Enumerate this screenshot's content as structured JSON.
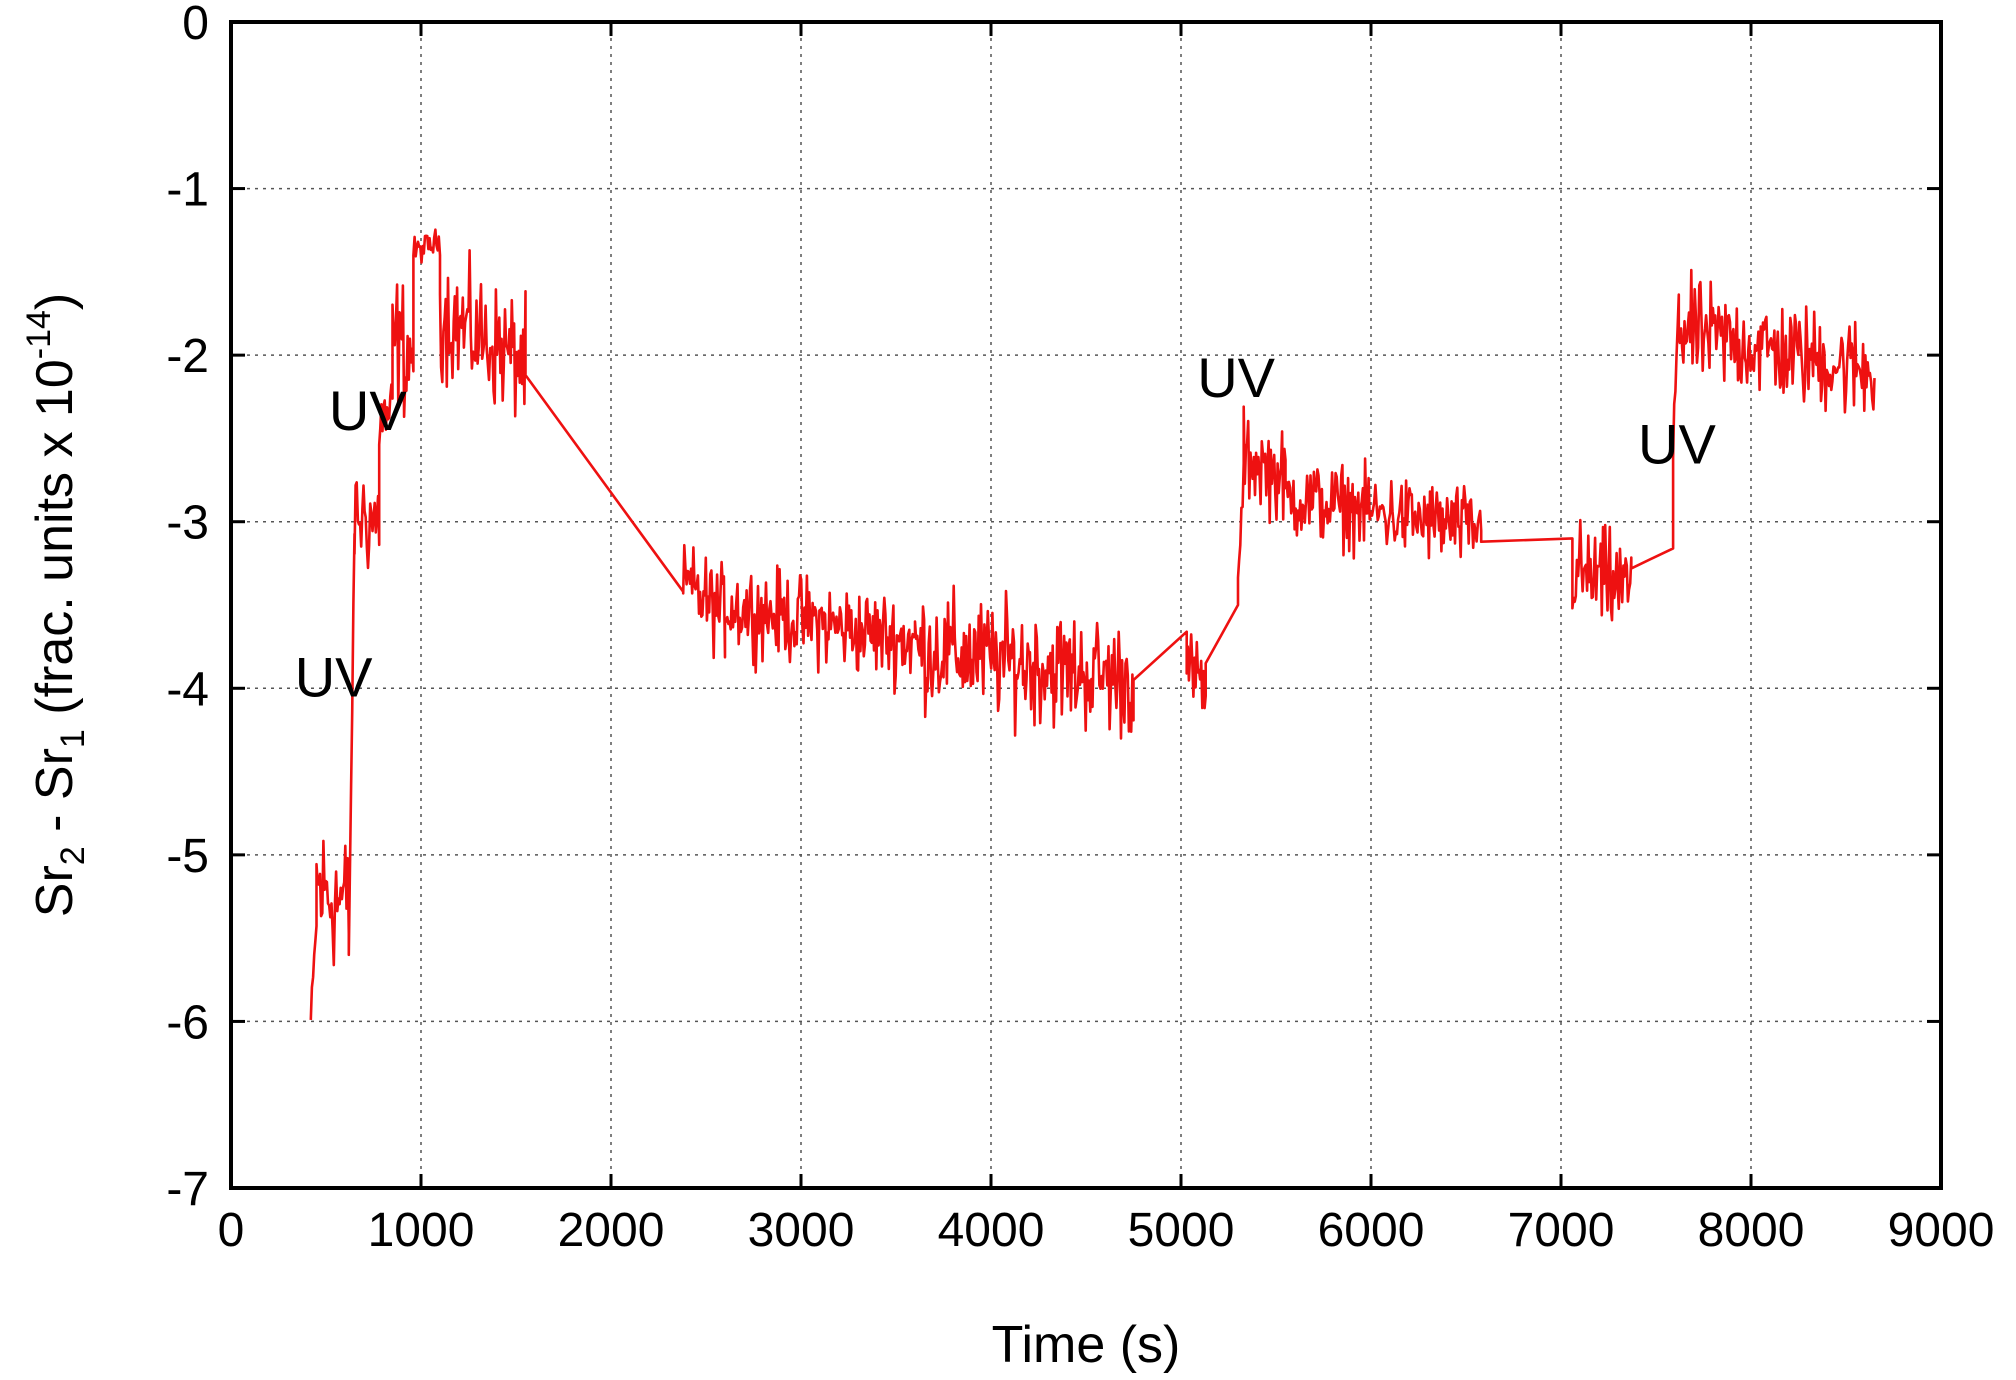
{
  "chart_data": {
    "type": "line",
    "xlabel": "Time (s)",
    "ylabel_parts": {
      "a": "Sr",
      "a_sub": "2",
      "mid": " - Sr",
      "b_sub": "1",
      "c": " (frac. units x 10",
      "exp": "-14",
      "close": ")"
    },
    "xlim": [
      0,
      9000
    ],
    "ylim": [
      -7,
      0
    ],
    "xticks": [
      0,
      1000,
      2000,
      3000,
      4000,
      5000,
      6000,
      7000,
      8000,
      9000
    ],
    "yticks": [
      0,
      -1,
      -2,
      -3,
      -4,
      -5,
      -6,
      -7
    ],
    "grid": true,
    "series_color": "#ee1111",
    "annotations": [
      {
        "text": "UV",
        "x": 720,
        "y": -2.45
      },
      {
        "text": "UV",
        "x": 540,
        "y": -4.05
      },
      {
        "text": "UV",
        "x": 5290,
        "y": -2.25
      },
      {
        "text": "UV",
        "x": 7610,
        "y": -2.65
      }
    ],
    "segments": [
      {
        "x0": 420,
        "x1": 450,
        "base": -6.0,
        "end": -5.4,
        "noise": 0.05
      },
      {
        "x0": 450,
        "x1": 620,
        "base": -5.2,
        "end": -5.3,
        "noise": 0.22
      },
      {
        "x0": 620,
        "x1": 650,
        "base": -5.6,
        "end": -3.1,
        "noise": 0.05
      },
      {
        "x0": 650,
        "x1": 780,
        "base": -2.95,
        "end": -3.0,
        "noise": 0.17
      },
      {
        "x0": 780,
        "x1": 850,
        "base": -2.4,
        "end": -2.35,
        "noise": 0.12
      },
      {
        "x0": 850,
        "x1": 960,
        "base": -1.9,
        "end": -2.0,
        "noise": 0.2
      },
      {
        "x0": 960,
        "x1": 1100,
        "base": -1.38,
        "end": -1.32,
        "noise": 0.04
      },
      {
        "x0": 1100,
        "x1": 1550,
        "base": -1.75,
        "end": -2.05,
        "noise": 0.18
      },
      {
        "x0": 1550,
        "x1": 2380,
        "base": -2.12,
        "end": -3.42,
        "noise": 0.0
      },
      {
        "x0": 2380,
        "x1": 2600,
        "base": -3.38,
        "end": -3.55,
        "noise": 0.13
      },
      {
        "x0": 2600,
        "x1": 3600,
        "base": -3.5,
        "end": -3.72,
        "noise": 0.13
      },
      {
        "x0": 3600,
        "x1": 4750,
        "base": -3.75,
        "end": -3.95,
        "noise": 0.17
      },
      {
        "x0": 4750,
        "x1": 5030,
        "base": -3.95,
        "end": -3.66,
        "noise": 0.0
      },
      {
        "x0": 5030,
        "x1": 5130,
        "base": -3.88,
        "end": -4.0,
        "noise": 0.12
      },
      {
        "x0": 5130,
        "x1": 5300,
        "base": -3.85,
        "end": -3.5,
        "noise": 0.0
      },
      {
        "x0": 5300,
        "x1": 5330,
        "base": -3.4,
        "end": -2.7,
        "noise": 0.05
      },
      {
        "x0": 5330,
        "x1": 5550,
        "base": -2.6,
        "end": -2.75,
        "noise": 0.13
      },
      {
        "x0": 5550,
        "x1": 6580,
        "base": -2.85,
        "end": -3.05,
        "noise": 0.12
      },
      {
        "x0": 6580,
        "x1": 7060,
        "base": -3.12,
        "end": -3.1,
        "noise": 0.0
      },
      {
        "x0": 7060,
        "x1": 7370,
        "base": -3.3,
        "end": -3.4,
        "noise": 0.15
      },
      {
        "x0": 7370,
        "x1": 7590,
        "base": -3.28,
        "end": -3.16,
        "noise": 0.0
      },
      {
        "x0": 7590,
        "x1": 7620,
        "base": -2.6,
        "end": -1.6,
        "noise": 0.05
      },
      {
        "x0": 7620,
        "x1": 8650,
        "base": -1.85,
        "end": -2.1,
        "noise": 0.15
      }
    ]
  }
}
